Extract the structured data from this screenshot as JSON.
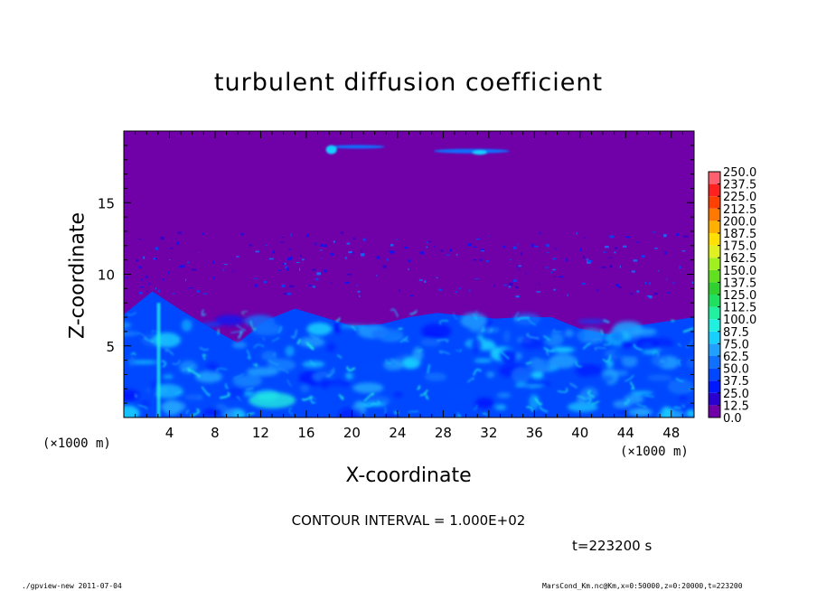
{
  "chart_data": {
    "type": "heatmap",
    "title": "turbulent diffusion coefficient",
    "xlabel": "X-coordinate",
    "ylabel": "Z-coordinate",
    "x_unit": "(×1000 m)",
    "xlim": [
      0,
      50
    ],
    "ylim": [
      0,
      20
    ],
    "x_ticks": [
      4,
      8,
      12,
      16,
      20,
      24,
      28,
      32,
      36,
      40,
      44,
      48
    ],
    "y_ticks": [
      5,
      10,
      15
    ],
    "colorbar": {
      "levels": [
        "0.0",
        "12.5",
        "25.0",
        "37.5",
        "50.0",
        "62.5",
        "75.0",
        "87.5",
        "100.0",
        "112.5",
        "125.0",
        "137.5",
        "150.0",
        "162.5",
        "175.0",
        "187.5",
        "200.0",
        "212.5",
        "225.0",
        "237.5",
        "250.0"
      ],
      "colors": [
        "#7000a8",
        "#2a00d0",
        "#0018ff",
        "#0048ff",
        "#1070ff",
        "#20a0ff",
        "#18d0ff",
        "#20f0e0",
        "#20f0a0",
        "#20e060",
        "#30d030",
        "#60e020",
        "#a0f020",
        "#e0f020",
        "#ffe000",
        "#ffb000",
        "#ff7800",
        "#ff4000",
        "#ff2020",
        "#ff6070"
      ]
    },
    "field_summary": {
      "background_color": "#7000a8",
      "boundary_layer_top": [
        7.2,
        8.8,
        7.5,
        6.3,
        5.2,
        6.8,
        7.6,
        7.0,
        6.4,
        6.5,
        7.0,
        7.3,
        7.1,
        6.9,
        7.0,
        7.0,
        6.2,
        5.8,
        6.4,
        6.7,
        7.0
      ],
      "boundary_layer_x": [
        0,
        2.5,
        5,
        7.5,
        10,
        12.5,
        15,
        17.5,
        20,
        22.5,
        25,
        27.5,
        30,
        32.5,
        35,
        37.5,
        40,
        42.5,
        45,
        47.5,
        50
      ]
    },
    "contour_interval": "CONTOUR INTERVAL = 1.000E+02",
    "time": "t=223200 s"
  },
  "footer": {
    "left": "./gpview-new  2011-07-04",
    "right": "MarsCond_Km.nc@Km,x=0:50000,z=0:20000,t=223200"
  }
}
